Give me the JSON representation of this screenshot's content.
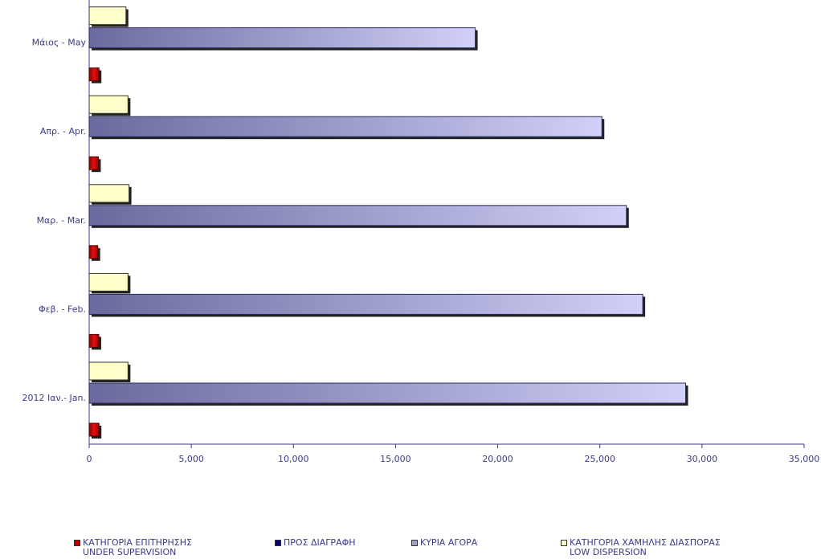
{
  "chart_data": {
    "type": "bar",
    "orientation": "horizontal",
    "categories": [
      "2012  Ιαν.- Jan.",
      "Φεβ. - Feb.",
      "Μαρ. - Mar.",
      "Απρ. - Apr.",
      "Μάιος - May"
    ],
    "series": [
      {
        "name": "ΚΑΤΗΓΟΡΙΑ ΕΠΙΤΗΡΗΣΗΣ\nUNDER SUPERVISION",
        "color": "#c00000",
        "values": [
          480,
          470,
          420,
          450,
          480
        ]
      },
      {
        "name": "ΠΡΟΣ ΔΙΑΓΡΑΦΗ",
        "color": "#000080",
        "values": [
          0,
          0,
          0,
          0,
          0
        ]
      },
      {
        "name": "ΚΥΡΙΑ ΑΓΟΡΑ",
        "color": "#8a8ac2",
        "values": [
          29200,
          27100,
          26300,
          25100,
          18900
        ]
      },
      {
        "name": "ΚΑΤΗΓΟΡΙΑ ΧΑΜΗΛΗΣ ΔΙΑΣΠΟΡΑΣ\nLOW DISPERSION",
        "color": "#ffffcc",
        "values": [
          1900,
          1900,
          1950,
          1900,
          1800
        ]
      }
    ],
    "xlim": [
      0,
      35000
    ],
    "xticks": [
      0,
      5000,
      10000,
      15000,
      20000,
      25000,
      30000,
      35000
    ],
    "xtick_labels": [
      "0",
      "5,000",
      "10,000",
      "15,000",
      "20,000",
      "25,000",
      "30,000",
      "35,000"
    ],
    "grid": false,
    "legend_position": "bottom",
    "text_color": "#3a3a8a"
  }
}
